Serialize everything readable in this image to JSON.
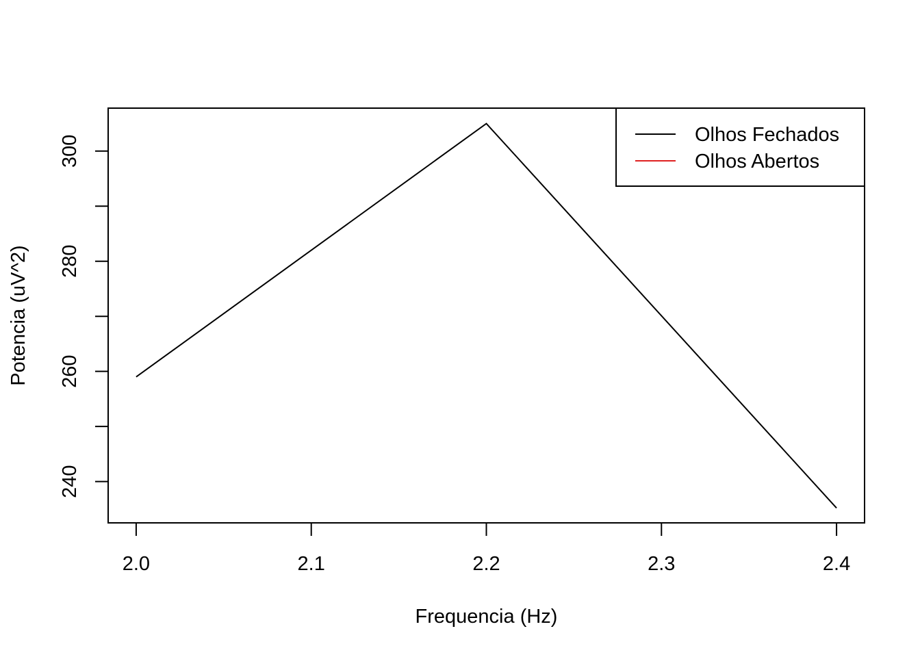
{
  "chart_data": {
    "type": "line",
    "xlabel": "Frequencia (Hz)",
    "ylabel": "Potencia (uV^2)",
    "x_ticks": [
      2.0,
      2.1,
      2.2,
      2.3,
      2.4
    ],
    "x_tick_labels": [
      "2.0",
      "2.1",
      "2.2",
      "2.3",
      "2.4"
    ],
    "y_ticks": [
      240,
      250,
      260,
      270,
      280,
      290,
      300
    ],
    "y_tick_labels": [
      "240",
      "",
      "260",
      "",
      "280",
      "",
      "300"
    ],
    "xlim": [
      1.984,
      2.416
    ],
    "ylim": [
      232.5,
      307.8
    ],
    "grid": false,
    "legend_position": "top-right",
    "series": [
      {
        "name": "Olhos Fechados",
        "color": "#000000",
        "x": [
          2.0,
          2.2,
          2.4
        ],
        "y": [
          259,
          305,
          235.2
        ]
      },
      {
        "name": "Olhos Abertos",
        "color": "#DF2020",
        "x": [],
        "y": []
      }
    ]
  }
}
